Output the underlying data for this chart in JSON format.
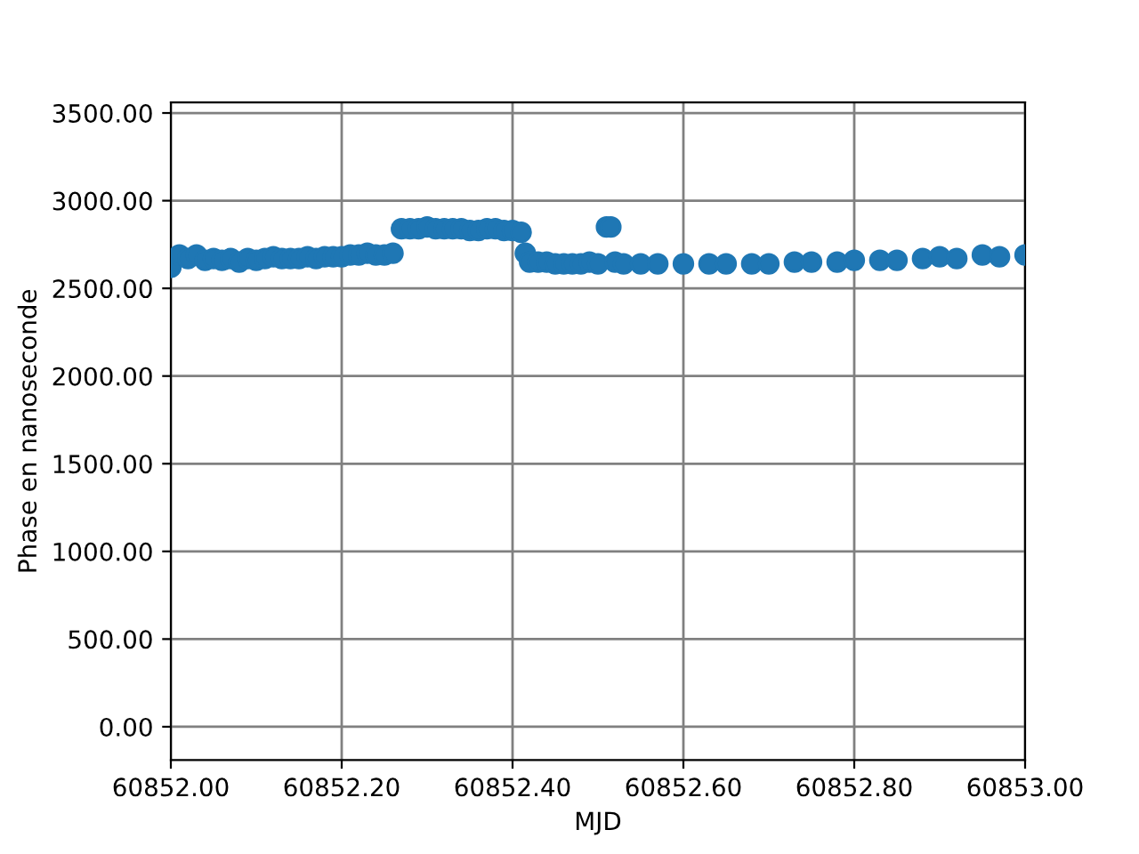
{
  "chart_data": {
    "type": "scatter",
    "xlabel": "MJD",
    "ylabel": "Phase en nanoseconde",
    "xlim": [
      60852.0,
      60853.0
    ],
    "xticks": [
      {
        "value": 60852.0,
        "label": "60852.00"
      },
      {
        "value": 60852.2,
        "label": "60852.20"
      },
      {
        "value": 60852.4,
        "label": "60852.40"
      },
      {
        "value": 60852.6,
        "label": "60852.60"
      },
      {
        "value": 60852.8,
        "label": "60852.80"
      },
      {
        "value": 60853.0,
        "label": "60853.00"
      }
    ],
    "ylim": [
      -190,
      3560
    ],
    "yticks": [
      {
        "value": 0,
        "label": "0.00"
      },
      {
        "value": 500,
        "label": "500.00"
      },
      {
        "value": 1000,
        "label": "1000.00"
      },
      {
        "value": 1500,
        "label": "1500.00"
      },
      {
        "value": 2000,
        "label": "2000.00"
      },
      {
        "value": 2500,
        "label": "2500.00"
      },
      {
        "value": 3000,
        "label": "3000.00"
      },
      {
        "value": 3500,
        "label": "3500.00"
      }
    ],
    "grid": true,
    "marker": "circle",
    "series": [
      {
        "color": "#1f77b4",
        "x": [
          60852.0,
          60852.01,
          60852.02,
          60852.03,
          60852.04,
          60852.05,
          60852.06,
          60852.07,
          60852.08,
          60852.09,
          60852.1,
          60852.11,
          60852.12,
          60852.13,
          60852.14,
          60852.15,
          60852.16,
          60852.17,
          60852.18,
          60852.19,
          60852.2,
          60852.21,
          60852.22,
          60852.23,
          60852.24,
          60852.25,
          60852.26,
          60852.27,
          60852.28,
          60852.29,
          60852.3,
          60852.31,
          60852.32,
          60852.33,
          60852.34,
          60852.35,
          60852.36,
          60852.37,
          60852.38,
          60852.39,
          60852.4,
          60852.41,
          60852.415,
          60852.42,
          60852.43,
          60852.44,
          60852.45,
          60852.46,
          60852.47,
          60852.48,
          60852.49,
          60852.5,
          60852.51,
          60852.515,
          60852.52,
          60852.53,
          60852.55,
          60852.57,
          60852.6,
          60852.63,
          60852.65,
          60852.68,
          60852.7,
          60852.73,
          60852.75,
          60852.78,
          60852.8,
          60852.83,
          60852.85,
          60852.88,
          60852.9,
          60852.92,
          60852.95,
          60852.97,
          60853.0
        ],
        "values": [
          2620,
          2690,
          2670,
          2690,
          2660,
          2670,
          2660,
          2670,
          2650,
          2670,
          2660,
          2670,
          2680,
          2670,
          2670,
          2670,
          2680,
          2670,
          2680,
          2680,
          2680,
          2690,
          2690,
          2700,
          2690,
          2690,
          2700,
          2840,
          2840,
          2840,
          2850,
          2840,
          2840,
          2840,
          2840,
          2830,
          2830,
          2840,
          2840,
          2830,
          2830,
          2820,
          2700,
          2650,
          2650,
          2650,
          2640,
          2640,
          2640,
          2640,
          2650,
          2640,
          2850,
          2850,
          2650,
          2640,
          2640,
          2640,
          2640,
          2640,
          2640,
          2640,
          2640,
          2650,
          2650,
          2650,
          2660,
          2660,
          2660,
          2670,
          2680,
          2670,
          2690,
          2680,
          2690
        ]
      }
    ]
  }
}
